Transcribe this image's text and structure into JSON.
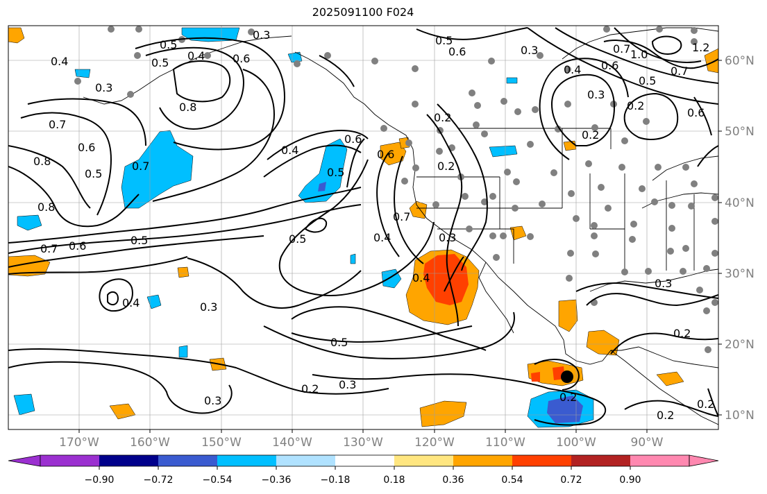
{
  "title": "2025091100 F024",
  "lon_ticks": [
    "170°W",
    "160°W",
    "150°W",
    "140°W",
    "130°W",
    "120°W",
    "110°W",
    "100°W",
    "90°W"
  ],
  "lat_ticks": [
    "60°N",
    "50°N",
    "40°N",
    "30°N",
    "20°N",
    "10°N"
  ],
  "contour_labels": [
    "0.3",
    "0.5",
    "0.4",
    "0.3",
    "0.5",
    "0.4",
    "0.6",
    "0.7",
    "0.8",
    "0.7",
    "0.6",
    "0.5",
    "0.8",
    "0.7",
    "0.6",
    "0.5",
    "0.4",
    "0.6",
    "0.5",
    "0.8",
    "0.6",
    "0.7",
    "0.5",
    "0.4",
    "0.3",
    "0.4",
    "0.3",
    "0.5",
    "0.2",
    "0.3",
    "0.2",
    "0.3",
    "0.2",
    "0.3",
    "0.2",
    "0.2",
    "0.7",
    "1.0",
    "0.6",
    "0.5",
    "0.4",
    "0.3",
    "0.2",
    "0.6",
    "0.2",
    "0.2",
    "0.3",
    "0.2",
    "0.7",
    "0.6",
    "0.5",
    "0.4",
    "1.2"
  ],
  "colorbar": {
    "ticks": [
      "−0.90",
      "−0.72",
      "−0.54",
      "−0.36",
      "−0.18",
      "0.18",
      "0.36",
      "0.54",
      "0.72",
      "0.90"
    ],
    "colors": [
      "#9b30d0",
      "#00008b",
      "#3a5bd0",
      "#00bfff",
      "#b0e2ff",
      "#ffffff",
      "#ffe680",
      "#ffa500",
      "#ff4000",
      "#b22222",
      "#ff88b0"
    ]
  },
  "marker_color": "#000000",
  "station_color": "#808080"
}
